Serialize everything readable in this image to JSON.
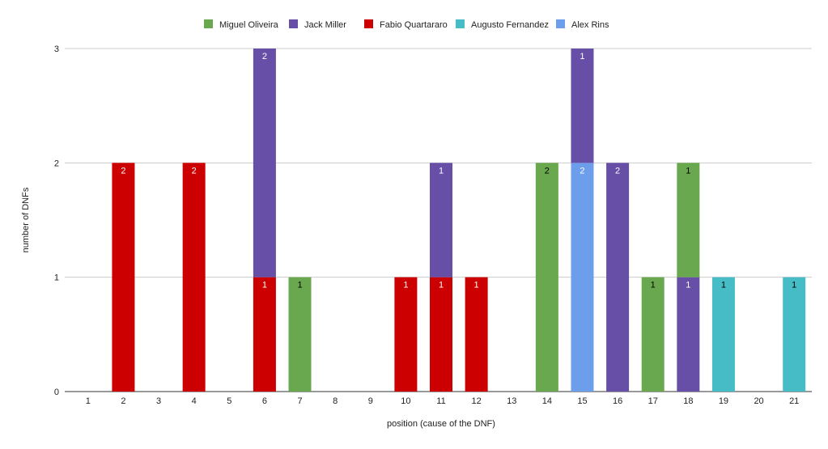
{
  "chart_data": {
    "type": "bar",
    "stacked": true,
    "xlabel": "position (cause of the DNF)",
    "ylabel": "number of DNFs",
    "ylim": [
      0,
      3
    ],
    "yticks": [
      0,
      1,
      2,
      3
    ],
    "grid": true,
    "legend_position": "top",
    "categories": [
      "1",
      "2",
      "3",
      "4",
      "5",
      "6",
      "7",
      "8",
      "9",
      "10",
      "11",
      "12",
      "13",
      "14",
      "15",
      "16",
      "17",
      "18",
      "19",
      "20",
      "21"
    ],
    "series": [
      {
        "name": "Miguel Oliveira",
        "color": "#6aa84f",
        "label_color": "#000000",
        "values": [
          0,
          0,
          0,
          0,
          0,
          0,
          1,
          0,
          0,
          0,
          0,
          0,
          0,
          2,
          0,
          0,
          1,
          1,
          0,
          0,
          0
        ]
      },
      {
        "name": "Jack Miller",
        "color": "#674ea7",
        "label_color": "#ffffff",
        "values": [
          0,
          0,
          0,
          0,
          0,
          2,
          0,
          0,
          0,
          0,
          1,
          0,
          0,
          0,
          1,
          2,
          0,
          1,
          0,
          0,
          0
        ]
      },
      {
        "name": "Fabio Quartararo",
        "color": "#cc0000",
        "label_color": "#ffffff",
        "values": [
          0,
          2,
          0,
          2,
          0,
          1,
          0,
          0,
          0,
          1,
          1,
          1,
          0,
          0,
          0,
          0,
          0,
          0,
          0,
          0,
          0
        ]
      },
      {
        "name": "Augusto Fernandez",
        "color": "#46bdc6",
        "label_color": "#000000",
        "values": [
          0,
          0,
          0,
          0,
          0,
          0,
          0,
          0,
          0,
          0,
          0,
          0,
          0,
          0,
          0,
          0,
          0,
          0,
          1,
          0,
          1
        ]
      },
      {
        "name": "Alex Rins",
        "color": "#6d9eeb",
        "label_color": "#ffffff",
        "values": [
          0,
          0,
          0,
          0,
          0,
          0,
          0,
          0,
          0,
          0,
          0,
          0,
          0,
          0,
          2,
          0,
          0,
          0,
          0,
          0,
          0
        ]
      }
    ],
    "stack_order_bottom_up": [
      "Fabio Quartararo",
      "Alex Rins",
      "Augusto Fernandez",
      "Jack Miller",
      "Miguel Oliveira"
    ]
  }
}
